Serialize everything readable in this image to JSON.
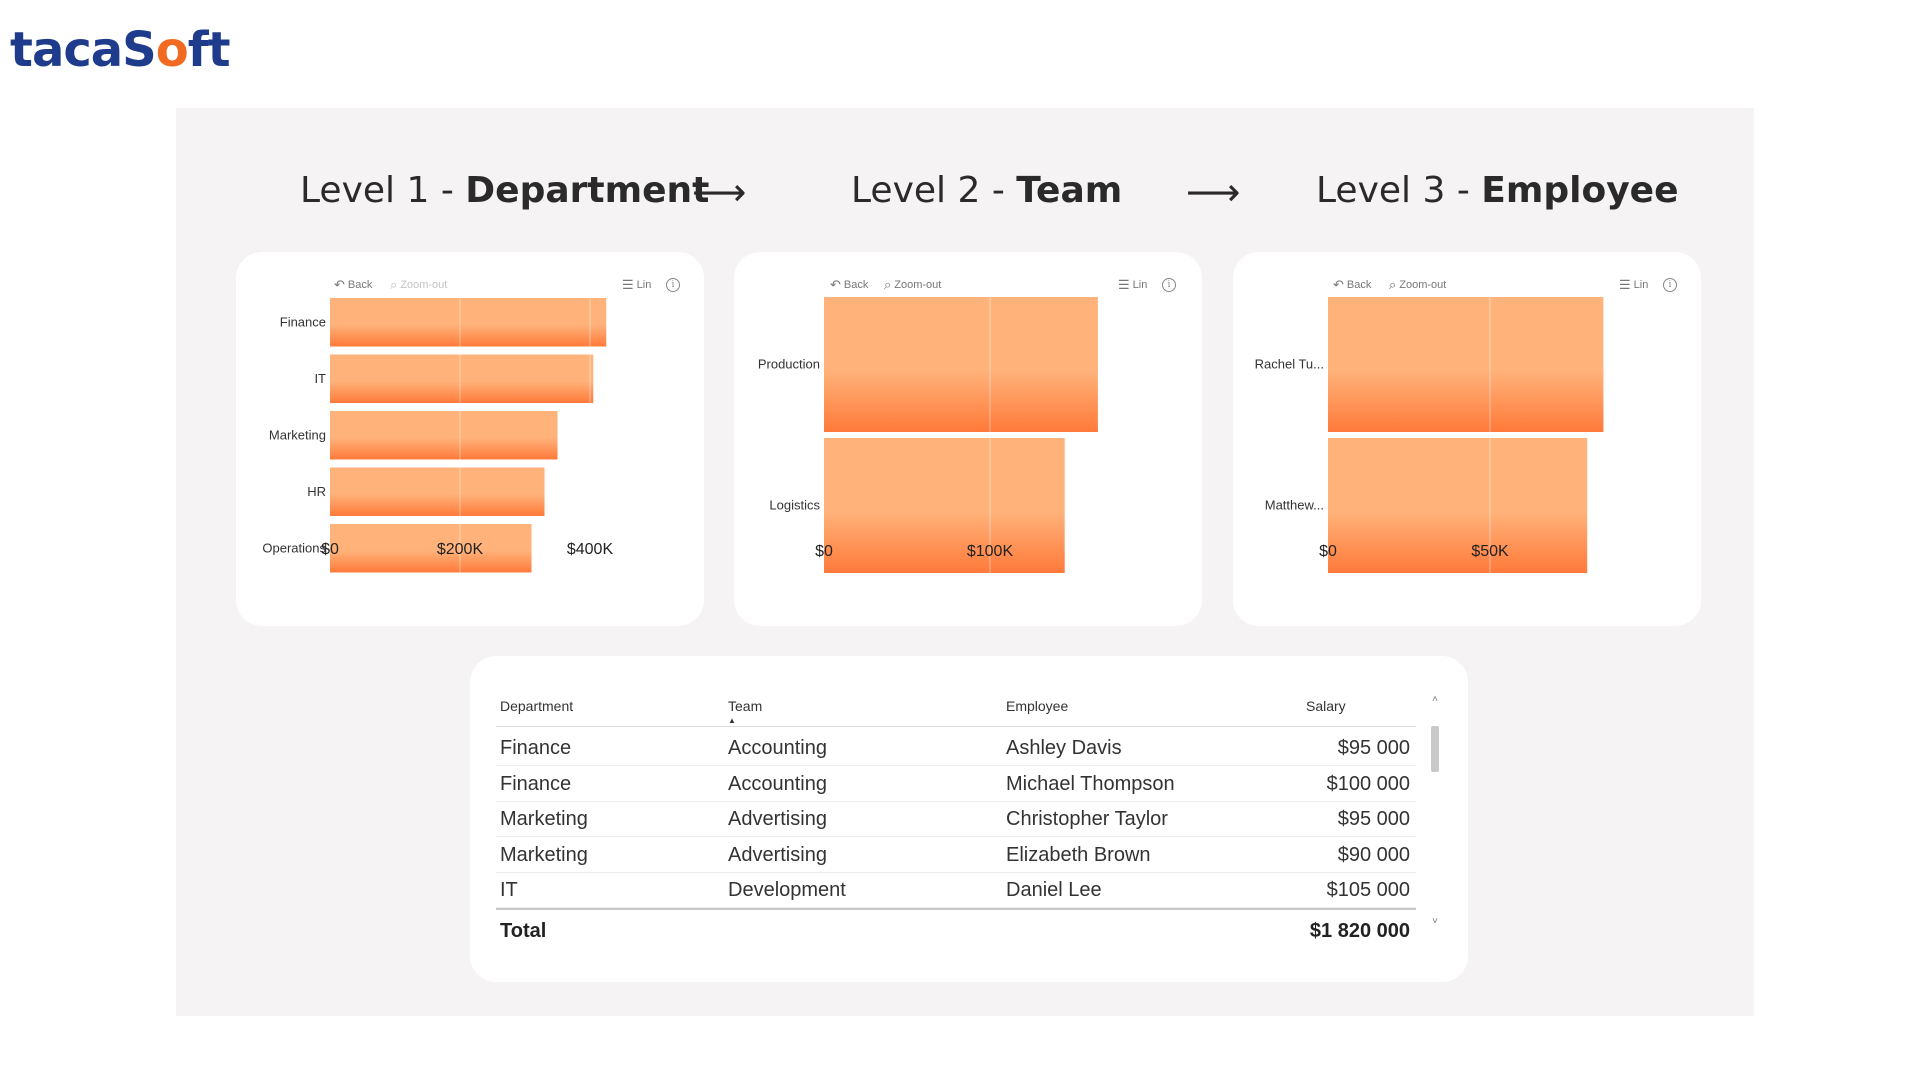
{
  "brand": {
    "logo_prefix": "tacaS",
    "logo_mark": "o",
    "logo_suffix": "ft"
  },
  "levels": [
    {
      "prefix": "Level 1 - ",
      "name": "Department"
    },
    {
      "prefix": "Level 2 - ",
      "name": "Team"
    },
    {
      "prefix": "Level 3 - ",
      "name": "Employee"
    }
  ],
  "arrow_glyph": "⟶",
  "toolbar": {
    "back": "Back",
    "zoom_out": "Zoom-out",
    "lin": "Lin"
  },
  "bar_color_top": "#ffb27a",
  "bar_color_bottom": "#ff7a3a",
  "chart_data": [
    {
      "type": "bar",
      "orientation": "horizontal",
      "categories": [
        "Finance",
        "IT",
        "Marketing",
        "HR",
        "Operations"
      ],
      "values": [
        425000,
        405000,
        350000,
        330000,
        310000
      ],
      "xlim": [
        0,
        400000
      ],
      "xticks": [
        0,
        200000,
        400000
      ],
      "xtick_labels": [
        "$0",
        "$200K",
        "$400K"
      ]
    },
    {
      "type": "bar",
      "orientation": "horizontal",
      "categories": [
        "Production",
        "Logistics"
      ],
      "values": [
        165000,
        145000
      ],
      "xlim": [
        0,
        200000
      ],
      "xticks": [
        0,
        100000
      ],
      "xtick_labels": [
        "$0",
        "$100K"
      ]
    },
    {
      "type": "bar",
      "orientation": "horizontal",
      "categories": [
        "Rachel Tu...",
        "Matthew..."
      ],
      "values": [
        85000,
        80000
      ],
      "xlim": [
        0,
        100000
      ],
      "xticks": [
        0,
        50000
      ],
      "xtick_labels": [
        "$0",
        "$50K"
      ]
    }
  ],
  "table": {
    "columns": [
      "Department",
      "Team",
      "Employee",
      "Salary"
    ],
    "rows": [
      [
        "Finance",
        "Accounting",
        "Ashley Davis",
        "$95 000"
      ],
      [
        "Finance",
        "Accounting",
        "Michael Thompson",
        "$100 000"
      ],
      [
        "Marketing",
        "Advertising",
        "Christopher Taylor",
        "$95 000"
      ],
      [
        "Marketing",
        "Advertising",
        "Elizabeth Brown",
        "$90 000"
      ],
      [
        "IT",
        "Development",
        "Daniel Lee",
        "$105 000"
      ]
    ],
    "total_label": "Total",
    "total_value": "$1 820 000",
    "sorted_column": "Team"
  }
}
